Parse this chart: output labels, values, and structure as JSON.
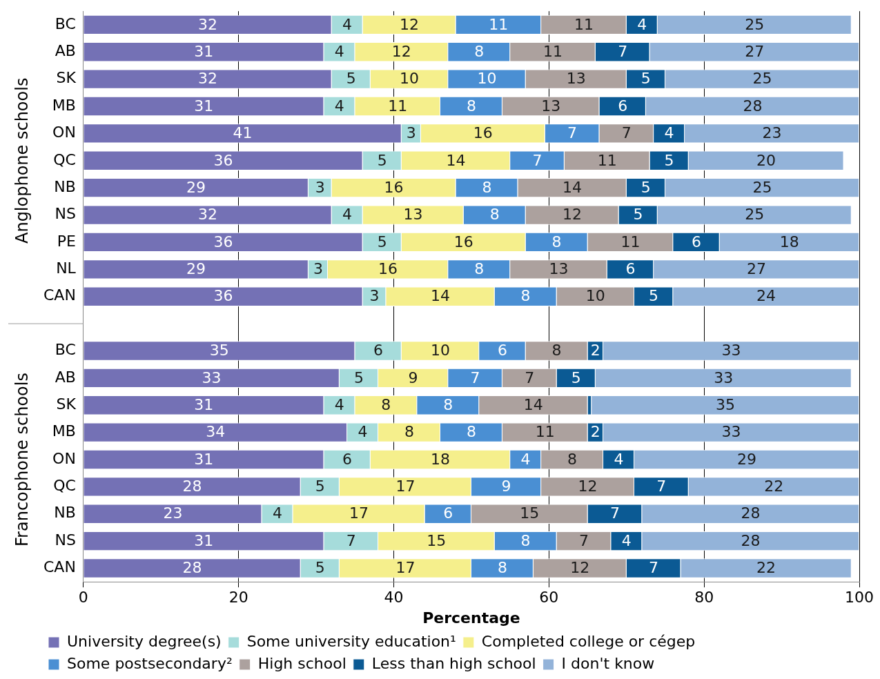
{
  "chart_data": {
    "type": "bar",
    "orientation": "horizontal",
    "stacked": true,
    "xlabel": "Percentage",
    "xlim": [
      0,
      100
    ],
    "xticks": [
      0,
      20,
      40,
      60,
      80,
      100
    ],
    "grid": "x",
    "legend": "bottom",
    "annotations": [
      "Anglophone schools",
      "Francophone schools"
    ],
    "categories": [
      "BC",
      "AB",
      "SK",
      "MB",
      "ON",
      "QC",
      "NB",
      "NS",
      "PE",
      "NL",
      "CAN",
      null,
      "BC",
      "AB",
      "SK",
      "MB",
      "ON",
      "QC",
      "NB",
      "NS",
      "CAN"
    ],
    "series": [
      {
        "name": "University degree(s)",
        "color": "#7471b5",
        "values": [
          32,
          31,
          32,
          31,
          41,
          36,
          29,
          32,
          36,
          29,
          36,
          null,
          35,
          33,
          31,
          34,
          31,
          28,
          23,
          31,
          28
        ],
        "value_labels": [
          "32",
          "31",
          "32",
          "31",
          "41",
          "36",
          "29",
          "32",
          "36",
          "29",
          "36",
          null,
          "35",
          "33",
          "31",
          "34",
          "31",
          "28",
          "23",
          "31",
          "28"
        ]
      },
      {
        "name": "Some university education¹",
        "color": "#a6dcdb",
        "values": [
          4,
          4,
          5,
          4,
          2.5,
          5,
          3,
          4,
          5,
          2.5,
          3,
          null,
          6,
          5,
          4,
          4,
          6,
          5,
          4,
          7,
          5
        ],
        "value_labels": [
          "4",
          "4",
          "5",
          "4",
          "3",
          "5",
          "3",
          "4",
          "5",
          "3",
          "3",
          null,
          "6",
          "5",
          "4",
          "4",
          "6",
          "5",
          "4",
          "7",
          "5"
        ]
      },
      {
        "name": "Completed college or cégep",
        "color": "#f5ef8c",
        "values": [
          12,
          12,
          10,
          11,
          16,
          14,
          16,
          13,
          16,
          15.5,
          14,
          null,
          10,
          9,
          8,
          8,
          18,
          17,
          17,
          15,
          17
        ],
        "value_labels": [
          "12",
          "12",
          "10",
          "11",
          "16",
          "14",
          "16",
          "13",
          "16",
          "16",
          "14",
          null,
          "10",
          "9",
          "8",
          "8",
          "18",
          "17",
          "17",
          "15",
          "17"
        ]
      },
      {
        "name": "Some postsecondary²",
        "color": "#4a8fd3",
        "values": [
          11,
          8,
          10,
          8,
          7,
          7,
          8,
          8,
          8,
          8,
          8,
          null,
          6,
          7,
          8,
          8,
          4,
          9,
          6,
          8,
          8
        ],
        "value_labels": [
          "11",
          "8",
          "10",
          "8",
          "7",
          "7",
          "8",
          "8",
          "8",
          "8",
          "8",
          null,
          "6",
          "7",
          "8",
          "8",
          "4",
          "9",
          "6",
          "8",
          "8"
        ]
      },
      {
        "name": "High school",
        "color": "#aca19e",
        "values": [
          11,
          11,
          13,
          12.5,
          7,
          11,
          14,
          12,
          11,
          12.5,
          10,
          null,
          8,
          7,
          14,
          11,
          8,
          12,
          15,
          7,
          12
        ],
        "value_labels": [
          "11",
          "11",
          "13",
          "13",
          "7",
          "11",
          "14",
          "12",
          "11",
          "13",
          "10",
          null,
          "8",
          "7",
          "14",
          "11",
          "8",
          "12",
          "15",
          "7",
          "12"
        ]
      },
      {
        "name": "Less than high school",
        "color": "#0b5a94",
        "values": [
          4,
          7,
          5,
          6,
          4,
          5,
          5,
          5,
          6,
          6,
          5,
          null,
          2,
          5,
          0.5,
          2,
          4,
          7,
          7,
          4,
          7
        ],
        "value_labels": [
          "4",
          "7",
          "5",
          "6",
          "4",
          "5",
          "5",
          "5",
          "6",
          "6",
          "5",
          null,
          "2",
          "5",
          null,
          "2",
          "4",
          "7",
          "7",
          "4",
          "7"
        ]
      },
      {
        "name": "I don't know",
        "color": "#93b3d9",
        "values": [
          25,
          27,
          25,
          27.5,
          22.5,
          20,
          25,
          25,
          18,
          26.5,
          24,
          null,
          33,
          33,
          34.5,
          33,
          29,
          22,
          28,
          28,
          22
        ],
        "value_labels": [
          "25",
          "27",
          "25",
          "28",
          "23",
          "20",
          "25",
          "25",
          "18",
          "27",
          "24",
          null,
          "33",
          "33",
          "35",
          "33",
          "29",
          "22",
          "28",
          "28",
          "22"
        ]
      }
    ]
  }
}
